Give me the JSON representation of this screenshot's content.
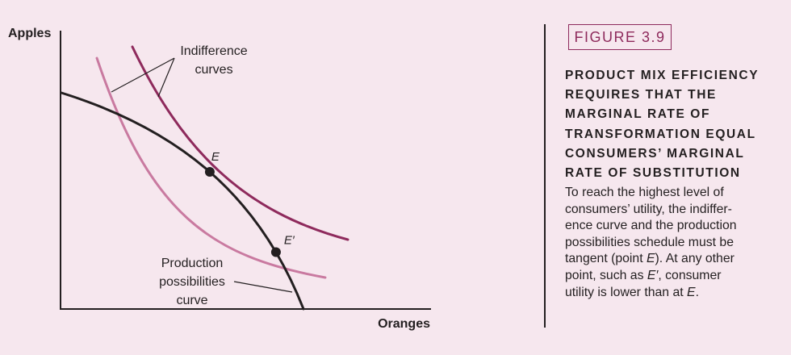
{
  "chart_data": {
    "type": "line",
    "xlabel": "Oranges",
    "ylabel": "Apples",
    "series": [
      {
        "role": "production-possibilities-curve",
        "color": "#231f20"
      },
      {
        "role": "indifference-curve-high",
        "color": "#8e2a5c"
      },
      {
        "role": "indifference-curve-low",
        "color": "#c97aa0"
      }
    ],
    "points": [
      {
        "label": "E",
        "on": [
          "production-possibilities-curve",
          "indifference-curve-high"
        ]
      },
      {
        "label": "E′",
        "on": [
          "production-possibilities-curve",
          "indifference-curve-low"
        ]
      }
    ],
    "annotations": {
      "indifference": [
        "Indifference",
        "curves"
      ],
      "production": [
        "Production",
        "possibilities",
        "curve"
      ]
    },
    "grid": false,
    "ticks": false
  },
  "figure": {
    "number": "FIGURE 3.9",
    "title_lines": [
      "PRODUCT MIX EFFICIENCY",
      "REQUIRES THAT THE",
      "MARGINAL RATE OF",
      "TRANSFORMATION EQUAL",
      "CONSUMERS’ MARGINAL",
      "RATE OF SUBSTITUTION"
    ],
    "body_lines": [
      [
        "To reach the highest level of"
      ],
      [
        "consumers’ utility, the indiffer-"
      ],
      [
        "ence curve and the production"
      ],
      [
        "possibilities schedule must be"
      ],
      [
        "tangent (point ",
        {
          "i": "E"
        },
        "). At any other"
      ],
      [
        "point, such as ",
        {
          "i": "E′"
        },
        ", consumer"
      ],
      [
        "utility is lower than at ",
        {
          "i": "E"
        },
        "."
      ]
    ]
  },
  "colors": {
    "background": "#f6e7ee",
    "accent": "#8e2a5c",
    "light": "#c97aa0",
    "ink": "#231f20"
  }
}
